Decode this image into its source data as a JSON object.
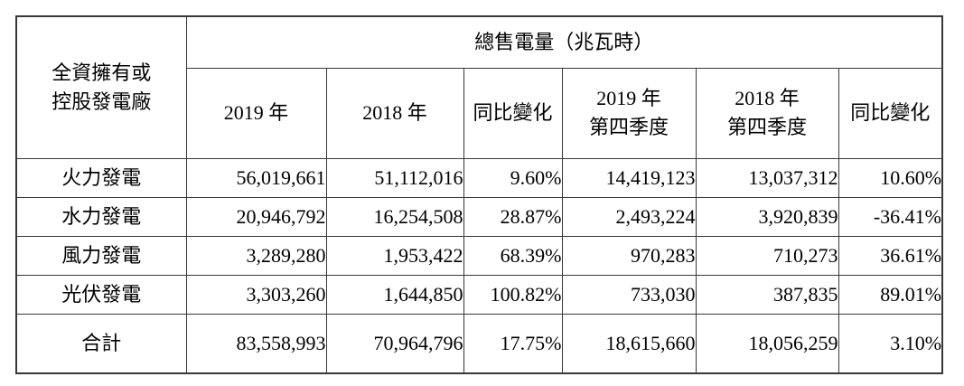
{
  "table": {
    "corner_header": {
      "line1": "全資擁有或",
      "line2": "控股發電廠"
    },
    "group_title": "總售電量（兆瓦時）",
    "columns": [
      {
        "line1": "2019 年"
      },
      {
        "line1": "2018 年"
      },
      {
        "line1": "同比變化"
      },
      {
        "line1": "2019 年",
        "line2": "第四季度"
      },
      {
        "line1": "2018 年",
        "line2": "第四季度"
      },
      {
        "line1": "同比變化"
      }
    ],
    "rows": [
      {
        "label": "火力發電",
        "values": [
          "56,019,661",
          "51,112,016",
          "9.60%",
          "14,419,123",
          "13,037,312",
          "10.60%"
        ]
      },
      {
        "label": "水力發電",
        "values": [
          "20,946,792",
          "16,254,508",
          "28.87%",
          "2,493,224",
          "3,920,839",
          "-36.41%"
        ]
      },
      {
        "label": "風力發電",
        "values": [
          "3,289,280",
          "1,953,422",
          "68.39%",
          "970,283",
          "710,273",
          "36.61%"
        ]
      },
      {
        "label": "光伏發電",
        "values": [
          "3,303,260",
          "1,644,850",
          "100.82%",
          "733,030",
          "387,835",
          "89.01%"
        ]
      }
    ],
    "total": {
      "label": "合計",
      "values": [
        "83,558,993",
        "70,964,796",
        "17.75%",
        "18,615,660",
        "18,056,259",
        "3.10%"
      ]
    }
  },
  "colors": {
    "border": "#383838",
    "text": "#000000",
    "background": "#ffffff"
  }
}
